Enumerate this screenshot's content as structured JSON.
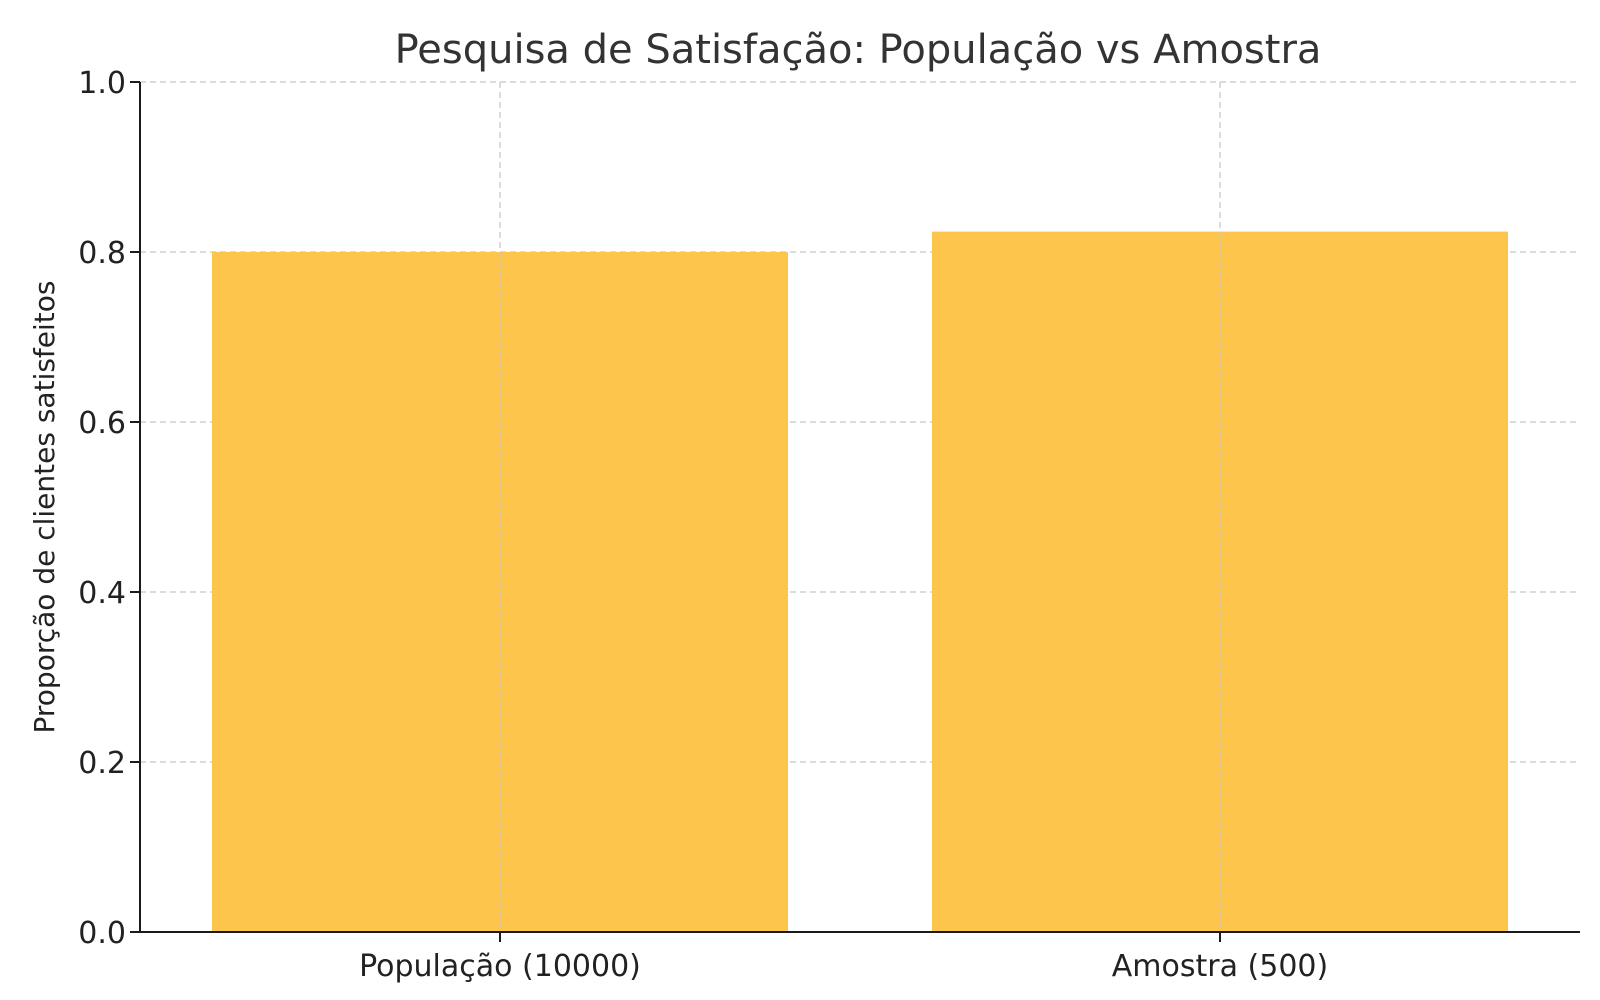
{
  "chart_data": {
    "type": "bar",
    "title": "Pesquisa de Satisfação: População vs Amostra",
    "xlabel": "",
    "ylabel": "Proporção de clientes satisfeitos",
    "categories": [
      "População (10000)",
      "Amostra (500)"
    ],
    "values": [
      0.8,
      0.824
    ],
    "ylim": [
      0.0,
      1.0
    ],
    "yticks": [
      "0.0",
      "0.2",
      "0.4",
      "0.6",
      "0.8",
      "1.0"
    ],
    "grid": true,
    "bar_color": "#FDC54B"
  }
}
